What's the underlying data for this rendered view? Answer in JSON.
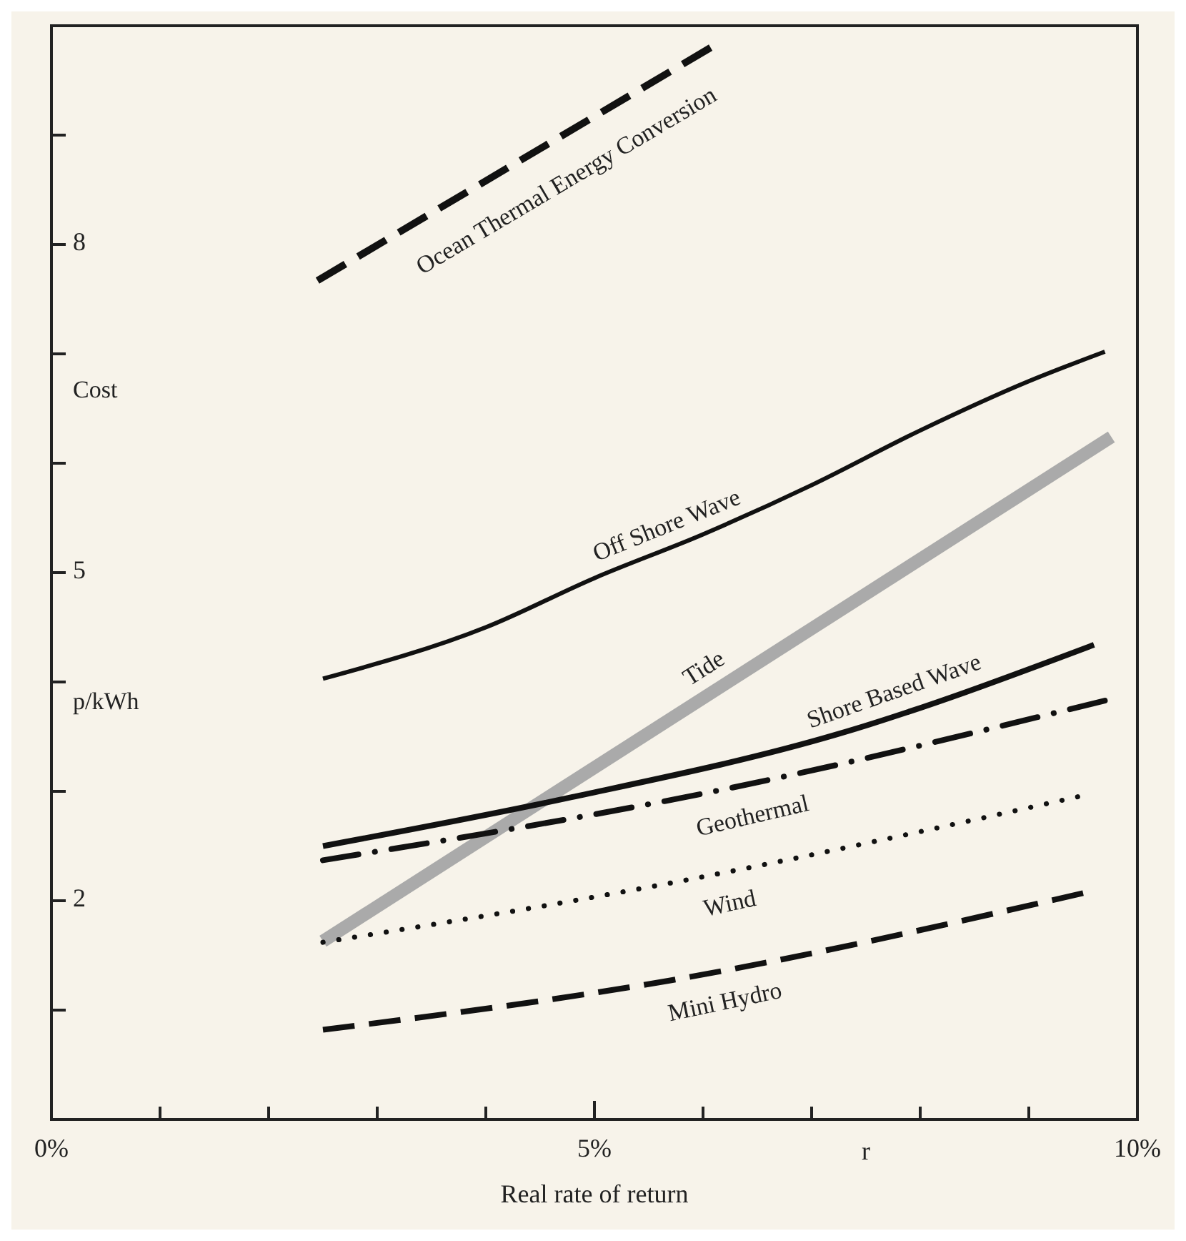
{
  "chart_data": {
    "type": "line",
    "xlabel": "Real rate of return",
    "ylabel": "Cost p/kWh",
    "annotations": [
      "r"
    ],
    "xlim": [
      0,
      10
    ],
    "xticks": [
      {
        "value": 0,
        "label": "0%"
      },
      {
        "value": 1,
        "label": null
      },
      {
        "value": 2,
        "label": null
      },
      {
        "value": 3,
        "label": null
      },
      {
        "value": 4,
        "label": null
      },
      {
        "value": 5,
        "label": "5%"
      },
      {
        "value": 6,
        "label": null
      },
      {
        "value": 7,
        "label": null
      },
      {
        "value": 8,
        "label": null
      },
      {
        "value": 9,
        "label": null
      },
      {
        "value": 10,
        "label": "10%"
      }
    ],
    "ylim": [
      0,
      10
    ],
    "yticks": [
      {
        "value": 1,
        "label": null
      },
      {
        "value": 2,
        "label": "2"
      },
      {
        "value": 3,
        "label": null
      },
      {
        "value": 4,
        "label": null
      },
      {
        "value": 5,
        "label": "5"
      },
      {
        "value": 6,
        "label": null
      },
      {
        "value": 7,
        "label": null
      },
      {
        "value": 8,
        "label": "8"
      },
      {
        "value": 9,
        "label": null
      }
    ],
    "grid": false,
    "marker": "none",
    "series": [
      {
        "name": "Ocean Thermal Energy Conversion",
        "color": "#111111",
        "line_style": "dashed",
        "x": [
          2.45,
          6.07
        ],
        "values": [
          7.67,
          9.8
        ]
      },
      {
        "name": "Off Shore Wave",
        "color": "#111111",
        "line_style": "solid",
        "x": [
          2.5,
          4,
          5,
          6,
          7,
          8,
          9,
          9.7
        ],
        "values": [
          4.03,
          4.5,
          4.95,
          5.35,
          5.8,
          6.3,
          6.75,
          7.02
        ]
      },
      {
        "name": "Tide",
        "color": "#aaaaaa",
        "line_style": "solid",
        "x": [
          2.5,
          9.76
        ],
        "values": [
          1.63,
          6.24
        ]
      },
      {
        "name": "Shore Based Wave",
        "color": "#111111",
        "line_style": "solid",
        "x": [
          2.5,
          4.76,
          7.23,
          9.6
        ],
        "values": [
          2.5,
          2.94,
          3.52,
          4.34
        ]
      },
      {
        "name": "Geothermal",
        "color": "#111111",
        "line_style": "dashdot",
        "x": [
          2.5,
          6.2,
          9.7
        ],
        "values": [
          2.37,
          3.02,
          3.83
        ]
      },
      {
        "name": "Wind",
        "color": "#111111",
        "line_style": "dotted",
        "x": [
          2.5,
          5.69,
          9.45
        ],
        "values": [
          1.62,
          2.16,
          2.95
        ]
      },
      {
        "name": "Mini Hydro",
        "color": "#111111",
        "line_style": "dashed",
        "x": [
          2.5,
          5.69,
          9.5
        ],
        "values": [
          0.82,
          1.27,
          2.07
        ]
      }
    ]
  }
}
